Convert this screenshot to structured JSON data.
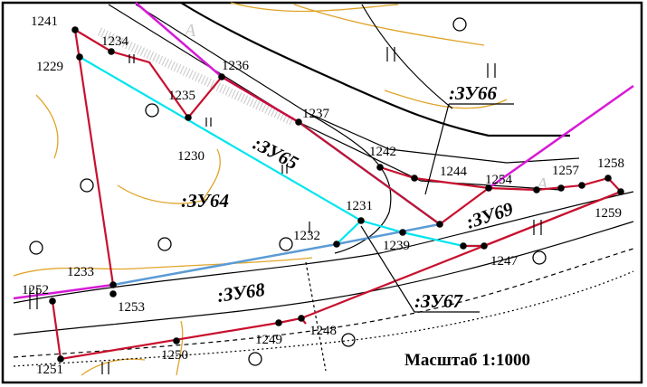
{
  "map": {
    "scale_label": "Масштаб 1:1000",
    "colors": {
      "boundary_red": "#c8102e",
      "cyan": "#00e5ee",
      "blue": "#5b9bd5",
      "magenta": "#d61ad6",
      "contour": "#e0a52a",
      "black": "#000000"
    },
    "areas": [
      {
        "id": "zu64",
        "label": ":ЗУ64"
      },
      {
        "id": "zu65",
        "label": ":ЗУ65"
      },
      {
        "id": "zu66",
        "label": ":ЗУ66"
      },
      {
        "id": "zu67",
        "label": ":ЗУ67"
      },
      {
        "id": "zu68",
        "label": ":ЗУ68"
      },
      {
        "id": "zu69",
        "label": ":ЗУ69"
      }
    ],
    "points": [
      {
        "label": "1241"
      },
      {
        "label": "1234"
      },
      {
        "label": "1229"
      },
      {
        "label": "1236"
      },
      {
        "label": "1235"
      },
      {
        "label": "1237"
      },
      {
        "label": "1230"
      },
      {
        "label": "1242"
      },
      {
        "label": "1244"
      },
      {
        "label": "1254"
      },
      {
        "label": "1257"
      },
      {
        "label": "1258"
      },
      {
        "label": "1259"
      },
      {
        "label": "1231"
      },
      {
        "label": "1232"
      },
      {
        "label": "1239"
      },
      {
        "label": "1247"
      },
      {
        "label": "1233"
      },
      {
        "label": "1252"
      },
      {
        "label": "1253"
      },
      {
        "label": "1249"
      },
      {
        "label": "1248"
      },
      {
        "label": "1250"
      },
      {
        "label": "1251"
      }
    ],
    "faint_label": "А"
  }
}
